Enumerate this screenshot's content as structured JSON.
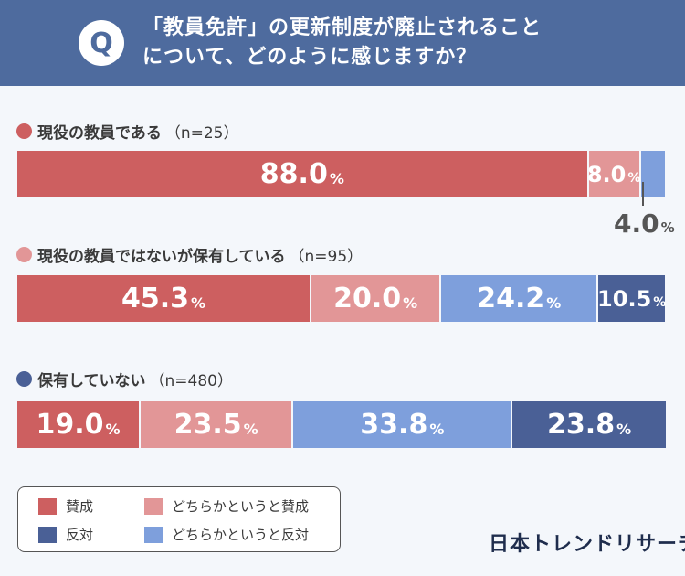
{
  "header": {
    "q_badge": "Q",
    "question_line1": "「教員免許」の更新制度が廃止されること",
    "question_line2": "について、どのように感じますか？"
  },
  "colors": {
    "agree": "#cd5f60",
    "somewhat_agree": "#e29697",
    "somewhat_disagree": "#7e9fdc",
    "disagree": "#4a6096"
  },
  "chart_data": {
    "type": "bar",
    "orientation": "horizontal-stacked-100",
    "categories": [
      "現役の教員である",
      "現役の教員ではないが保有している",
      "保有していない"
    ],
    "n": [
      "（n=25）",
      "（n=95）",
      "（n=480）"
    ],
    "series": [
      {
        "name": "賛成",
        "values": [
          88.0,
          45.3,
          19.0
        ]
      },
      {
        "name": "どちらかというと賛成",
        "values": [
          8.0,
          20.0,
          23.5
        ]
      },
      {
        "name": "どちらかというと反対",
        "values": [
          4.0,
          24.2,
          33.8
        ]
      },
      {
        "name": "反対",
        "values": [
          0,
          10.5,
          23.8
        ]
      }
    ],
    "unit": "%",
    "labels": [
      [
        "88.0",
        "8.0",
        "4.0",
        ""
      ],
      [
        "45.3",
        "20.0",
        "24.2",
        "10.5"
      ],
      [
        "19.0",
        "23.5",
        "33.8",
        "23.8"
      ]
    ],
    "legend_position": "bottom-left"
  },
  "legend": {
    "items": [
      "賛成",
      "どちらかというと賛成",
      "反対",
      "どちらかというと反対"
    ]
  },
  "brand": "日本トレンドリサーチ"
}
